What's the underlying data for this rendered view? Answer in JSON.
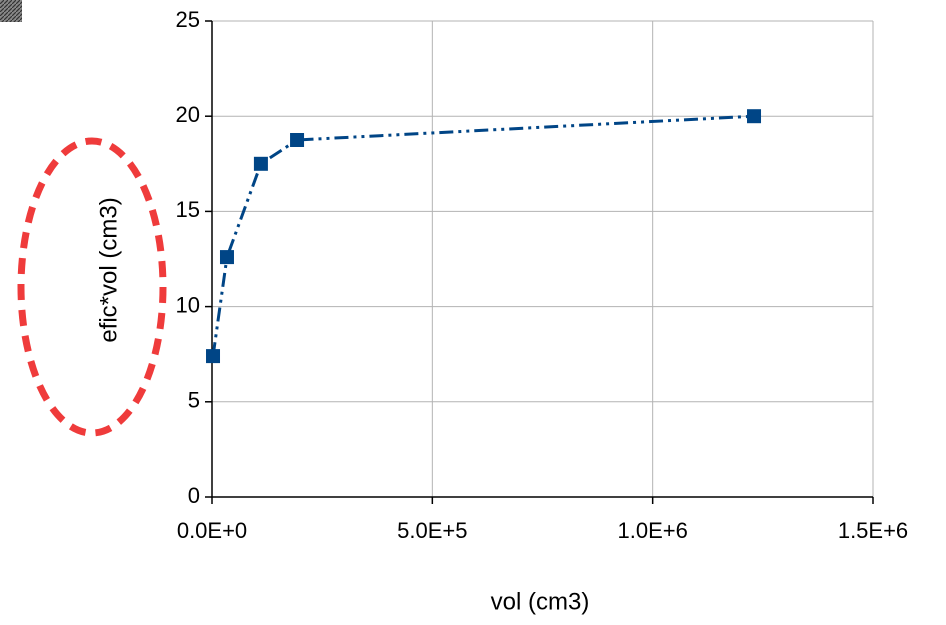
{
  "chart_data": {
    "type": "line",
    "x_label": "vol (cm3)",
    "y_label": "efic*vol (cm3)",
    "x": [
      2300,
      34000,
      111000,
      193000,
      1230000
    ],
    "values": [
      7.4,
      12.6,
      17.5,
      18.75,
      20.0
    ],
    "color": "#004586",
    "xlim": [
      0,
      1500000
    ],
    "xticks": [
      {
        "value": 0,
        "label": "0.0E+0"
      },
      {
        "value": 500000,
        "label": "5.0E+5"
      },
      {
        "value": 1000000,
        "label": "1.0E+6"
      },
      {
        "value": 1500000,
        "label": "1.5E+6"
      }
    ],
    "ylim": [
      0,
      25
    ],
    "yticks": [
      0,
      5,
      10,
      15,
      20,
      25
    ],
    "grid": true
  }
}
